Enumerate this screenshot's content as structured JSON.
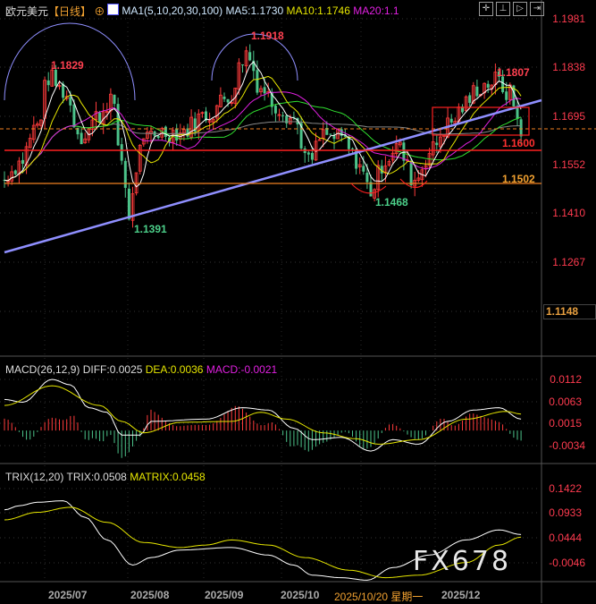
{
  "header": {
    "symbol": "欧元美元",
    "period": "【日线】",
    "indicator": "MA1(5,10,20,30,100)",
    "ma5": "MA5:1.1730",
    "ma10": "MA10:1.1746",
    "ma20": "MA20:1.1",
    "tools": [
      "crosshair-icon",
      "range-icon",
      "play-icon",
      "next-icon"
    ]
  },
  "price_axis": [
    "1.1981",
    "1.1838",
    "1.1695",
    "1.1552",
    "1.1410",
    "1.1267"
  ],
  "current_price_box": "1.1148",
  "annotations": {
    "high1": "1.1829",
    "high2": "1.1918",
    "low1": "1.1391",
    "low2": "1.1468",
    "high3": "1.1807",
    "support1": "1.1600",
    "support2": "1.1502"
  },
  "macd": {
    "title": "MACD(26,12,9)",
    "diff": "DIFF:0.0025",
    "dea": "DEA:0.0036",
    "macd": "MACD:-0.0021",
    "axis": [
      "0.0112",
      "0.0063",
      "0.0015",
      "-0.0034"
    ]
  },
  "trix": {
    "title": "TRIX(12,20)",
    "trix": "TRIX:0.0508",
    "matrix": "MATRIX:0.0458",
    "axis": [
      "0.1422",
      "0.0933",
      "0.0444",
      "-0.0046"
    ]
  },
  "dates": [
    "2025/07",
    "2025/08",
    "2025/09",
    "2025/10",
    "2025/12"
  ],
  "crosshair_date": "2025/10/20 星期一",
  "watermark": "FX678",
  "colors": {
    "up": "#ff3b3b",
    "down": "#4cc38a",
    "ma5": "#ffffff",
    "ma10": "#e6e600",
    "ma20": "#e020e0",
    "ma30": "#30e030",
    "ma100": "#888888",
    "trend": "#8f8fff",
    "accent": "#ff3b4f"
  },
  "chart_data": {
    "type": "candlestick",
    "bars": 142,
    "close_keypoints": [
      [
        0,
        1.151
      ],
      [
        1,
        1.153
      ],
      [
        4,
        1.156
      ],
      [
        9,
        1.167
      ],
      [
        12,
        1.181
      ],
      [
        16,
        1.177
      ],
      [
        21,
        1.164
      ],
      [
        26,
        1.17
      ],
      [
        29,
        1.175
      ],
      [
        32,
        1.157
      ],
      [
        34,
        1.141
      ],
      [
        37,
        1.159
      ],
      [
        40,
        1.165
      ],
      [
        48,
        1.165
      ],
      [
        55,
        1.17
      ],
      [
        61,
        1.175
      ],
      [
        66,
        1.188
      ],
      [
        70,
        1.178
      ],
      [
        74,
        1.173
      ],
      [
        79,
        1.169
      ],
      [
        83,
        1.156
      ],
      [
        87,
        1.164
      ],
      [
        92,
        1.163
      ],
      [
        96,
        1.157
      ],
      [
        100,
        1.148
      ],
      [
        104,
        1.157
      ],
      [
        107,
        1.161
      ],
      [
        112,
        1.151
      ],
      [
        116,
        1.159
      ],
      [
        121,
        1.167
      ],
      [
        126,
        1.173
      ],
      [
        129,
        1.178
      ],
      [
        134,
        1.18
      ],
      [
        138,
        1.176
      ],
      [
        141,
        1.166
      ]
    ],
    "macd_diff": [
      [
        0,
        0.0068
      ],
      [
        5,
        0.0062
      ],
      [
        13,
        0.0112
      ],
      [
        18,
        0.01
      ],
      [
        23,
        0.005
      ],
      [
        28,
        0.004
      ],
      [
        32,
        -0.001
      ],
      [
        37,
        -0.001
      ],
      [
        40,
        0.002
      ],
      [
        55,
        0.0025
      ],
      [
        65,
        0.005
      ],
      [
        72,
        0.0045
      ],
      [
        79,
        0.0005
      ],
      [
        84,
        -0.002
      ],
      [
        92,
        -0.0015
      ],
      [
        100,
        -0.0045
      ],
      [
        106,
        -0.002
      ],
      [
        113,
        -0.003
      ],
      [
        121,
        0.002
      ],
      [
        128,
        0.0045
      ],
      [
        135,
        0.005
      ],
      [
        141,
        0.0025
      ]
    ],
    "macd_dea": [
      [
        0,
        0.0055
      ],
      [
        13,
        0.0098
      ],
      [
        26,
        0.0055
      ],
      [
        32,
        0.002
      ],
      [
        38,
        -0.0005
      ],
      [
        48,
        0.0018
      ],
      [
        62,
        0.002
      ],
      [
        70,
        0.004
      ],
      [
        77,
        0.0025
      ],
      [
        87,
        -0.0005
      ],
      [
        96,
        -0.0018
      ],
      [
        102,
        -0.003
      ],
      [
        113,
        -0.002
      ],
      [
        126,
        0.0025
      ],
      [
        137,
        0.0042
      ],
      [
        141,
        0.0036
      ]
    ],
    "trix": [
      [
        0,
        0.1
      ],
      [
        4,
        0.108
      ],
      [
        9,
        0.115
      ],
      [
        16,
        0.118
      ],
      [
        22,
        0.085
      ],
      [
        28,
        0.04
      ],
      [
        35,
        -0.01
      ],
      [
        40,
        0.005
      ],
      [
        48,
        0.02
      ],
      [
        62,
        0.025
      ],
      [
        72,
        0.01
      ],
      [
        79,
        -0.01
      ],
      [
        84,
        -0.03
      ],
      [
        92,
        -0.035
      ],
      [
        99,
        -0.04
      ],
      [
        106,
        -0.015
      ],
      [
        116,
        0.01
      ],
      [
        126,
        0.04
      ],
      [
        135,
        0.06
      ],
      [
        141,
        0.0508
      ]
    ],
    "matrix": [
      [
        0,
        0.08
      ],
      [
        9,
        0.095
      ],
      [
        18,
        0.105
      ],
      [
        28,
        0.075
      ],
      [
        38,
        0.035
      ],
      [
        48,
        0.025
      ],
      [
        55,
        0.03
      ],
      [
        62,
        0.04
      ],
      [
        72,
        0.03
      ],
      [
        82,
        0.005
      ],
      [
        94,
        -0.02
      ],
      [
        104,
        -0.035
      ],
      [
        113,
        -0.03
      ],
      [
        126,
        -0.005
      ],
      [
        135,
        0.03
      ],
      [
        141,
        0.0458
      ]
    ]
  }
}
